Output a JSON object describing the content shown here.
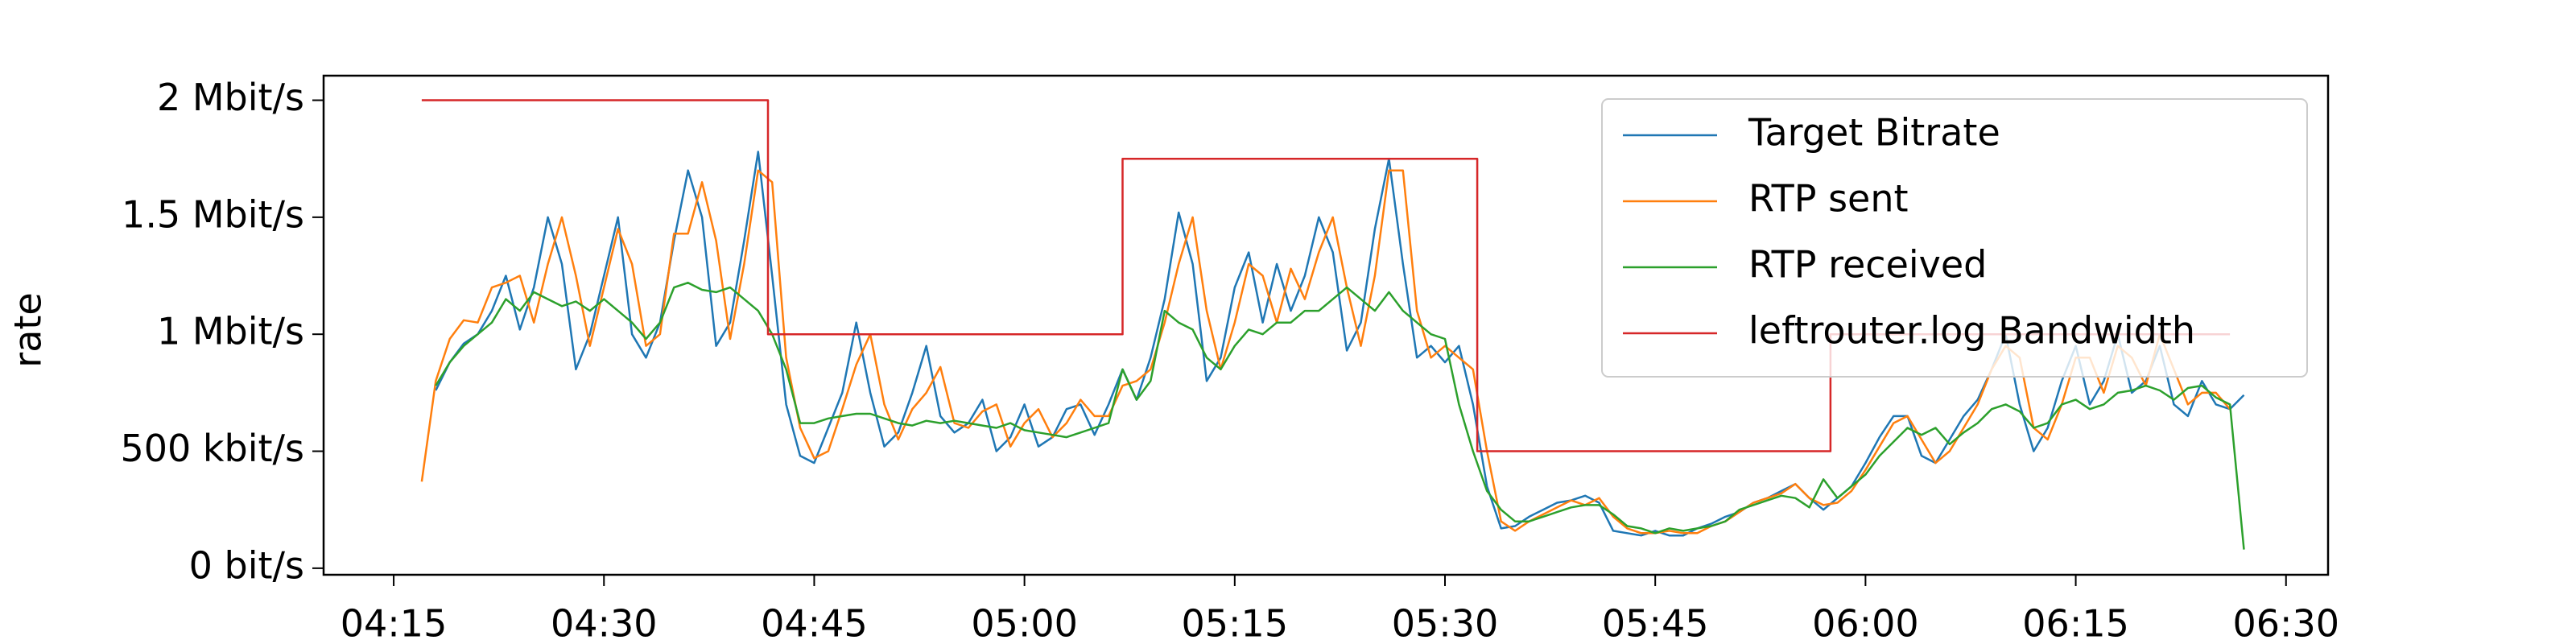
{
  "chart_data": {
    "type": "line",
    "y_label": "rate",
    "x": [
      257,
      258,
      259,
      260,
      261,
      262,
      263,
      264,
      265,
      266,
      267,
      268,
      269,
      270,
      271,
      272,
      273,
      274,
      275,
      276,
      277,
      278,
      279,
      280,
      281,
      282,
      283,
      284,
      285,
      286,
      287,
      288,
      289,
      290,
      291,
      292,
      293,
      294,
      295,
      296,
      297,
      298,
      299,
      300,
      301,
      302,
      303,
      304,
      305,
      306,
      307,
      308,
      309,
      310,
      311,
      312,
      313,
      314,
      315,
      316,
      317,
      318,
      319,
      320,
      321,
      322,
      323,
      324,
      325,
      326,
      327,
      328,
      329,
      330,
      331,
      332,
      333,
      334,
      335,
      336,
      337,
      338,
      339,
      340,
      341,
      342,
      343,
      344,
      345,
      346,
      347,
      348,
      349,
      350,
      351,
      352,
      353,
      354,
      355,
      356,
      357,
      358,
      359,
      360,
      361,
      362,
      363,
      364,
      365,
      366,
      367,
      368,
      369,
      370,
      371,
      372,
      373,
      374,
      375,
      376,
      377,
      378,
      379,
      380,
      381,
      382,
      383,
      384,
      385,
      386,
      387
    ],
    "series": [
      {
        "name": "Target Bitrate",
        "color": "#1f77b4",
        "values": [
          null,
          760000,
          880000,
          960000,
          1000000,
          1100000,
          1250000,
          1020000,
          1200000,
          1500000,
          1300000,
          850000,
          1000000,
          1250000,
          1500000,
          1000000,
          900000,
          1050000,
          1400000,
          1700000,
          1500000,
          950000,
          1050000,
          1400000,
          1780000,
          1250000,
          700000,
          480000,
          450000,
          600000,
          750000,
          1050000,
          750000,
          520000,
          580000,
          750000,
          950000,
          650000,
          580000,
          620000,
          720000,
          500000,
          560000,
          700000,
          520000,
          560000,
          680000,
          700000,
          570000,
          700000,
          850000,
          720000,
          900000,
          1150000,
          1520000,
          1300000,
          800000,
          900000,
          1200000,
          1350000,
          1050000,
          1300000,
          1100000,
          1250000,
          1500000,
          1350000,
          930000,
          1050000,
          1450000,
          1750000,
          1300000,
          900000,
          950000,
          880000,
          950000,
          700000,
          350000,
          170000,
          180000,
          220000,
          250000,
          280000,
          290000,
          310000,
          280000,
          160000,
          150000,
          140000,
          160000,
          140000,
          140000,
          170000,
          190000,
          220000,
          240000,
          280000,
          300000,
          330000,
          360000,
          300000,
          250000,
          300000,
          350000,
          450000,
          560000,
          650000,
          650000,
          480000,
          450000,
          550000,
          650000,
          720000,
          850000,
          1000000,
          700000,
          500000,
          600000,
          800000,
          950000,
          700000,
          800000,
          1000000,
          750000,
          800000,
          950000,
          700000,
          650000,
          800000,
          700000,
          680000,
          740000
        ]
      },
      {
        "name": "RTP sent",
        "color": "#ff7f0e",
        "values": [
          370000,
          800000,
          980000,
          1060000,
          1050000,
          1200000,
          1220000,
          1250000,
          1050000,
          1300000,
          1500000,
          1250000,
          950000,
          1200000,
          1450000,
          1300000,
          950000,
          1000000,
          1430000,
          1430000,
          1650000,
          1400000,
          980000,
          1300000,
          1700000,
          1650000,
          900000,
          600000,
          470000,
          500000,
          680000,
          870000,
          1000000,
          700000,
          550000,
          680000,
          750000,
          860000,
          620000,
          600000,
          670000,
          700000,
          520000,
          620000,
          680000,
          560000,
          620000,
          720000,
          650000,
          650000,
          780000,
          800000,
          850000,
          1050000,
          1300000,
          1500000,
          1100000,
          850000,
          1050000,
          1300000,
          1250000,
          1050000,
          1280000,
          1150000,
          1350000,
          1500000,
          1200000,
          950000,
          1250000,
          1700000,
          1700000,
          1100000,
          900000,
          950000,
          900000,
          850000,
          500000,
          200000,
          160000,
          200000,
          230000,
          260000,
          290000,
          270000,
          300000,
          220000,
          170000,
          150000,
          150000,
          160000,
          150000,
          150000,
          180000,
          200000,
          240000,
          280000,
          300000,
          320000,
          360000,
          300000,
          270000,
          280000,
          330000,
          420000,
          520000,
          620000,
          650000,
          550000,
          450000,
          500000,
          600000,
          700000,
          850000,
          950000,
          900000,
          600000,
          550000,
          700000,
          900000,
          900000,
          750000,
          950000,
          900000,
          780000,
          1000000,
          850000,
          700000,
          750000,
          750000,
          680000,
          null
        ]
      },
      {
        "name": "RTP received",
        "color": "#2ca02c",
        "values": [
          null,
          780000,
          880000,
          950000,
          1000000,
          1050000,
          1150000,
          1100000,
          1180000,
          1150000,
          1120000,
          1140000,
          1100000,
          1150000,
          1100000,
          1050000,
          980000,
          1050000,
          1200000,
          1220000,
          1190000,
          1180000,
          1200000,
          1150000,
          1100000,
          1000000,
          850000,
          620000,
          620000,
          640000,
          650000,
          660000,
          660000,
          640000,
          620000,
          610000,
          630000,
          620000,
          630000,
          620000,
          610000,
          600000,
          620000,
          590000,
          580000,
          570000,
          560000,
          580000,
          600000,
          620000,
          850000,
          720000,
          800000,
          1100000,
          1050000,
          1020000,
          900000,
          850000,
          950000,
          1020000,
          1000000,
          1050000,
          1050000,
          1100000,
          1100000,
          1150000,
          1200000,
          1150000,
          1100000,
          1180000,
          1100000,
          1050000,
          1000000,
          980000,
          700000,
          500000,
          330000,
          250000,
          200000,
          200000,
          220000,
          240000,
          260000,
          270000,
          270000,
          230000,
          180000,
          170000,
          150000,
          170000,
          160000,
          170000,
          180000,
          200000,
          250000,
          270000,
          290000,
          310000,
          300000,
          260000,
          380000,
          300000,
          350000,
          400000,
          480000,
          540000,
          600000,
          570000,
          600000,
          530000,
          580000,
          620000,
          680000,
          700000,
          670000,
          600000,
          620000,
          700000,
          720000,
          680000,
          700000,
          750000,
          760000,
          780000,
          760000,
          720000,
          770000,
          780000,
          730000,
          700000,
          80000
        ]
      },
      {
        "name": "leftrouter.log Bandwidth",
        "color": "#d62728",
        "x": [
          257,
          281.7,
          281.7,
          307,
          307,
          332.3,
          332.3,
          357.5,
          357.5,
          386
        ],
        "values": [
          2000000,
          2000000,
          1000000,
          1000000,
          1750000,
          1750000,
          500000,
          500000,
          1000000,
          1000000
        ]
      }
    ],
    "xlim": [
      250,
      393
    ],
    "xticks": [
      {
        "value": 255,
        "label": "04:15"
      },
      {
        "value": 270,
        "label": "04:30"
      },
      {
        "value": 285,
        "label": "04:45"
      },
      {
        "value": 300,
        "label": "05:00"
      },
      {
        "value": 315,
        "label": "05:15"
      },
      {
        "value": 330,
        "label": "05:30"
      },
      {
        "value": 345,
        "label": "05:45"
      },
      {
        "value": 360,
        "label": "06:00"
      },
      {
        "value": 375,
        "label": "06:15"
      },
      {
        "value": 390,
        "label": "06:30"
      }
    ],
    "ylim": [
      -28000,
      2105000
    ],
    "yticks": [
      {
        "value": 0,
        "label": "0 bit/s"
      },
      {
        "value": 500000,
        "label": "500 kbit/s"
      },
      {
        "value": 1000000,
        "label": "1 Mbit/s"
      },
      {
        "value": 1500000,
        "label": "1.5 Mbit/s"
      },
      {
        "value": 2000000,
        "label": "2 Mbit/s"
      }
    ],
    "legend": "upper right"
  }
}
